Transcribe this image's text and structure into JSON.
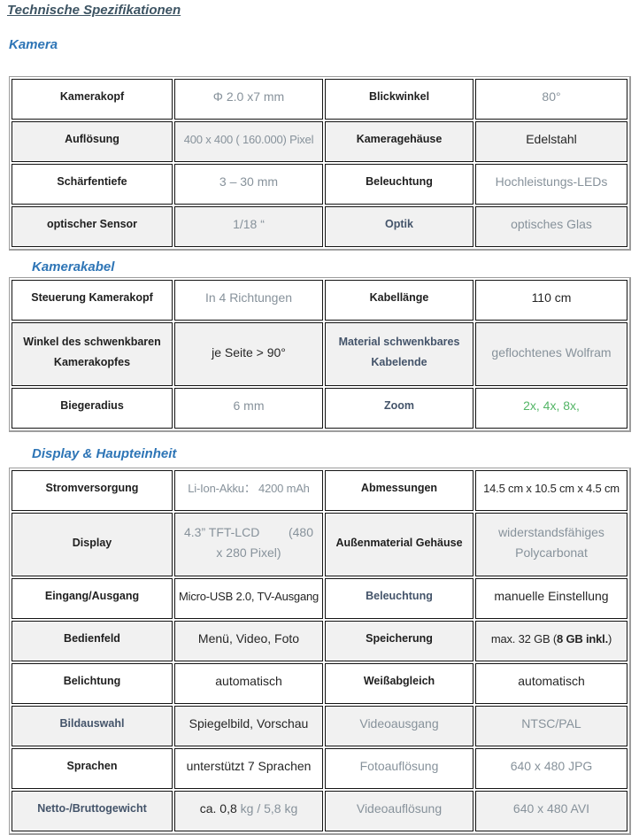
{
  "page": {
    "title": "Technische Spezifikationen"
  },
  "colors": {
    "heading_blue": "#2e75b6",
    "title_slate": "#3d5463",
    "label_black": "#1f1f1f",
    "label_slate": "#44546a",
    "value_gray": "#87929b",
    "value_dark": "#262626",
    "value_green": "#53b566",
    "row_alt_bg": "#f1f1f1"
  },
  "sections": [
    {
      "heading": "Kamera",
      "rows": [
        {
          "cells": [
            {
              "text": "Kamerakopf",
              "cls": "lbl",
              "name": "spec-label-cell"
            },
            {
              "text": "Φ 2.0 x7 mm",
              "cls": "val-gray",
              "name": "spec-value-cell"
            },
            {
              "text": "Blickwinkel",
              "cls": "lbl",
              "name": "spec-label-cell"
            },
            {
              "text": "80°",
              "cls": "val-gray",
              "name": "spec-value-cell"
            }
          ]
        },
        {
          "cells": [
            {
              "text": "Auflösung",
              "cls": "lbl",
              "name": "spec-label-cell"
            },
            {
              "text": "400 x 400 ( 160.000) Pixel",
              "cls": "val-gray fit",
              "name": "spec-value-cell"
            },
            {
              "text": "Kameragehäuse",
              "cls": "lbl",
              "name": "spec-label-cell"
            },
            {
              "text": "Edelstahl",
              "cls": "val-dark",
              "name": "spec-value-cell"
            }
          ]
        },
        {
          "cells": [
            {
              "text": "Schärfentiefe",
              "cls": "lbl",
              "name": "spec-label-cell"
            },
            {
              "text": "3 – 30 mm",
              "cls": "val-gray",
              "name": "spec-value-cell"
            },
            {
              "text": "Beleuchtung",
              "cls": "lbl",
              "name": "spec-label-cell"
            },
            {
              "text": "Hochleistungs-LEDs",
              "cls": "val-gray",
              "name": "spec-value-cell"
            }
          ]
        },
        {
          "cells": [
            {
              "text": "optischer Sensor",
              "cls": "lbl",
              "name": "spec-label-cell"
            },
            {
              "text": "1/18 “",
              "cls": "val-gray",
              "name": "spec-value-cell"
            },
            {
              "text": "Optik",
              "cls": "lbl-slate",
              "name": "spec-label-cell"
            },
            {
              "text": "optisches Glas",
              "cls": "val-gray",
              "name": "spec-value-cell"
            }
          ]
        }
      ]
    },
    {
      "heading": "Kamerakabel",
      "rows": [
        {
          "cells": [
            {
              "text": "Steuerung Kamerakopf",
              "cls": "lbl",
              "name": "spec-label-cell"
            },
            {
              "text": "In 4 Richtungen",
              "cls": "val-gray",
              "name": "spec-value-cell"
            },
            {
              "text": "Kabellänge",
              "cls": "lbl",
              "name": "spec-label-cell"
            },
            {
              "text": "110 cm",
              "cls": "val-dark",
              "name": "spec-value-cell"
            }
          ]
        },
        {
          "tall": true,
          "cells": [
            {
              "text": "Winkel des schwenkbaren Kamerakopfes",
              "cls": "lbl",
              "name": "spec-label-cell"
            },
            {
              "text": "je Seite > 90°",
              "cls": "val-dark",
              "name": "spec-value-cell"
            },
            {
              "text": "Material schwenkbares Kabelende",
              "cls": "lbl-slate",
              "name": "spec-label-cell"
            },
            {
              "text": "geflochtenes Wolfram",
              "cls": "val-gray",
              "name": "spec-value-cell"
            }
          ]
        },
        {
          "cells": [
            {
              "text": "Biegeradius",
              "cls": "lbl",
              "name": "spec-label-cell"
            },
            {
              "text": "6 mm",
              "cls": "val-gray",
              "name": "spec-value-cell"
            },
            {
              "text": "Zoom",
              "cls": "lbl-slate",
              "name": "spec-label-cell"
            },
            {
              "text": "2x, 4x, 8x,",
              "cls": "val-green",
              "name": "spec-value-cell"
            }
          ]
        }
      ]
    },
    {
      "heading": "Display & Haupteinheit",
      "rows": [
        {
          "cells": [
            {
              "text": "Stromversorgung",
              "cls": "lbl",
              "name": "spec-label-cell"
            },
            {
              "text": "Li-Ion-Akku： 4200 mAh",
              "cls": "val-gray fit",
              "name": "spec-value-cell"
            },
            {
              "text": "Abmessungen",
              "cls": "lbl",
              "name": "spec-label-cell"
            },
            {
              "text": "14.5 cm x 10.5 cm x 4.5 cm",
              "cls": "val-dark fit",
              "name": "spec-value-cell"
            }
          ]
        },
        {
          "tall": true,
          "cells": [
            {
              "text": "Display",
              "cls": "lbl",
              "name": "spec-label-cell"
            },
            {
              "split": {
                "a": "4.3” TFT-LCD",
                "b": "(480",
                "c": "x 280 Pixel)"
              },
              "cls": "val-gray",
              "name": "spec-value-cell"
            },
            {
              "text": "Außenmaterial Gehäuse",
              "cls": "lbl",
              "name": "spec-label-cell"
            },
            {
              "text": "widerstandsfähiges Polycarbonat",
              "cls": "val-gray",
              "name": "spec-value-cell"
            }
          ]
        },
        {
          "cells": [
            {
              "text": "Eingang/Ausgang",
              "cls": "lbl",
              "name": "spec-label-cell"
            },
            {
              "text": "Micro-USB 2.0, TV-Ausgang",
              "cls": "val-dark fit",
              "name": "spec-value-cell"
            },
            {
              "text": "Beleuchtung",
              "cls": "lbl-slate",
              "name": "spec-label-cell"
            },
            {
              "text": "manuelle Einstellung",
              "cls": "val-dark",
              "name": "spec-value-cell"
            }
          ]
        },
        {
          "cells": [
            {
              "text": "Bedienfeld",
              "cls": "lbl",
              "name": "spec-label-cell"
            },
            {
              "text": "Menü, Video, Foto",
              "cls": "val-dark",
              "name": "spec-value-cell"
            },
            {
              "text": "Speicherung",
              "cls": "lbl",
              "name": "spec-label-cell"
            },
            {
              "parts": [
                {
                  "t": "max. 32 GB (",
                  "cls": "c-dark"
                },
                {
                  "t": "8 GB inkl.",
                  "cls": "c-dark bold"
                },
                {
                  "t": ")",
                  "cls": "c-dark"
                }
              ],
              "cls": "fit",
              "name": "spec-value-cell"
            }
          ]
        },
        {
          "cells": [
            {
              "text": "Belichtung",
              "cls": "lbl",
              "name": "spec-label-cell"
            },
            {
              "text": "automatisch",
              "cls": "val-dark",
              "name": "spec-value-cell"
            },
            {
              "text": "Weißabgleich",
              "cls": "lbl",
              "name": "spec-label-cell"
            },
            {
              "text": "automatisch",
              "cls": "val-dark",
              "name": "spec-value-cell"
            }
          ]
        },
        {
          "cells": [
            {
              "text": "Bildauswahl",
              "cls": "lbl-slate",
              "name": "spec-label-cell"
            },
            {
              "text": "Spiegelbild, Vorschau",
              "cls": "val-dark",
              "name": "spec-value-cell"
            },
            {
              "text": "Videoausgang",
              "cls": "val-gray",
              "name": "spec-label-cell"
            },
            {
              "text": "NTSC/PAL",
              "cls": "val-gray",
              "name": "spec-value-cell"
            }
          ]
        },
        {
          "cells": [
            {
              "text": "Sprachen",
              "cls": "lbl",
              "name": "spec-label-cell"
            },
            {
              "text": "unterstützt 7 Sprachen",
              "cls": "val-dark",
              "name": "spec-value-cell"
            },
            {
              "text": "Fotoauflösung",
              "cls": "val-gray",
              "name": "spec-label-cell"
            },
            {
              "text": "640 x 480 JPG",
              "cls": "val-gray",
              "name": "spec-value-cell"
            }
          ]
        },
        {
          "cells": [
            {
              "text": "Netto-/Bruttogewicht",
              "cls": "lbl-slate",
              "name": "spec-label-cell"
            },
            {
              "parts": [
                {
                  "t": "ca. 0,8 ",
                  "cls": "c-dark"
                },
                {
                  "t": "kg / 5,8 kg",
                  "cls": "c-gray"
                }
              ],
              "cls": "",
              "name": "spec-value-cell"
            },
            {
              "text": "Videoauflösung",
              "cls": "val-gray",
              "name": "spec-label-cell"
            },
            {
              "text": "640 x 480 AVI",
              "cls": "val-gray",
              "name": "spec-value-cell"
            }
          ]
        }
      ]
    }
  ]
}
